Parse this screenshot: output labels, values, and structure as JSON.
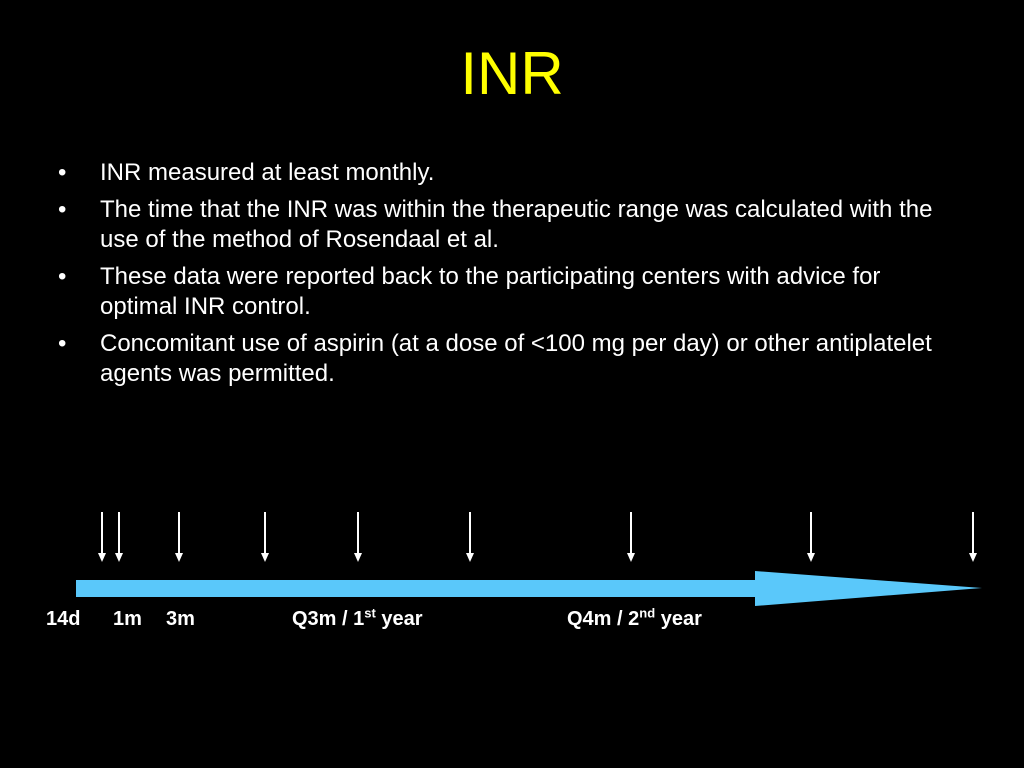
{
  "slide": {
    "title": "INR",
    "bullet_glyph": "•",
    "bullets": [
      {
        "text": "INR measured at least monthly."
      },
      {
        "text": "The time that the INR was within the therapeutic range was calculated with the use of the method of Rosendaal et al."
      },
      {
        "text": "These data were reported back to the participating centers with advice for optimal INR control."
      },
      {
        "text": "Concomitant use of aspirin (at a dose of <100 mg per day) or other antiplatelet agents was permitted."
      }
    ]
  },
  "timeline": {
    "arrow_color": "#5ac8fa",
    "marker_color": "#ffffff",
    "marker_count": 9,
    "labels": {
      "d14": "14d",
      "m1": "1m",
      "m3": "3m",
      "q3m_prefix": "Q3m / 1",
      "q3m_sup": "st",
      "q3m_suffix": " year",
      "q4m_prefix": "Q4m / 2",
      "q4m_sup": "nd",
      "q4m_suffix": " year"
    }
  },
  "colors": {
    "background": "#000000",
    "title": "#ffff00",
    "text": "#ffffff"
  }
}
